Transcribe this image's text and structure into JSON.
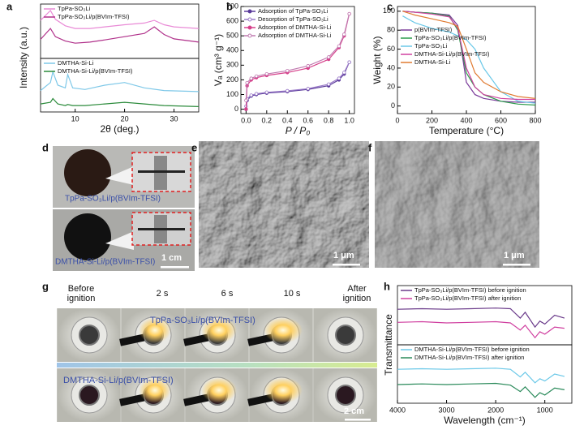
{
  "chart_data": [
    {
      "type": "line",
      "panel": "a",
      "y_label": "Intensity (a.u.)",
      "xlim": [
        3,
        35
      ],
      "ylim": [
        0,
        100
      ],
      "legend": "upper left",
      "x": [
        3,
        5,
        6,
        8,
        10,
        13,
        16,
        20,
        24,
        26,
        28,
        30,
        35
      ],
      "series": [
        {
          "name": "TpPa-SO₃Li",
          "color": "#e98ad6",
          "values": [
            70,
            88,
            72,
            60,
            55,
            55,
            58,
            62,
            65,
            70,
            62,
            58,
            55
          ]
        },
        {
          "name": "TpPa-SO₃Li/p(BVIm-TFSI)",
          "color": "#b0308a",
          "values": [
            35,
            55,
            40,
            32,
            28,
            30,
            34,
            40,
            46,
            58,
            44,
            36,
            30
          ]
        }
      ]
    },
    {
      "type": "line",
      "panel": "a",
      "x_label": "2θ (deg.)",
      "xlim": [
        3,
        35
      ],
      "ylim": [
        0,
        100
      ],
      "xticks": [
        10,
        20,
        30
      ],
      "legend": "upper left",
      "x": [
        3,
        5,
        5.5,
        6.5,
        8,
        8.5,
        9.5,
        12,
        16,
        20,
        24,
        28,
        35
      ],
      "series": [
        {
          "name": "DMTHA-Si-Li",
          "color": "#7ec8e8",
          "values": [
            40,
            55,
            75,
            50,
            45,
            70,
            45,
            42,
            50,
            55,
            45,
            40,
            38
          ]
        },
        {
          "name": "DMTHA-Si-Li/p(BVIm-TFSI)",
          "color": "#2a8a3a",
          "values": [
            15,
            18,
            25,
            15,
            12,
            14,
            12,
            12,
            15,
            18,
            15,
            12,
            10
          ]
        }
      ]
    },
    {
      "type": "line",
      "panel": "b",
      "x_label": "P / P₀",
      "y_label": "Vₐ (cm³ g⁻¹)",
      "xlim": [
        -0.05,
        1.05
      ],
      "ylim": [
        -30,
        700
      ],
      "legend": "upper left",
      "xticks": [
        {
          "value": 0,
          "label": "0.0"
        },
        {
          "value": 0.2,
          "label": "0.2"
        },
        {
          "value": 0.4,
          "label": "0.4"
        },
        {
          "value": 0.6,
          "label": "0.6"
        },
        {
          "value": 0.8,
          "label": "0.8"
        },
        {
          "value": 1,
          "label": "1.0"
        }
      ],
      "yticks": [
        0,
        100,
        200,
        300,
        400,
        500,
        600,
        700
      ],
      "x": [
        0,
        0.01,
        0.05,
        0.1,
        0.2,
        0.4,
        0.6,
        0.8,
        0.9,
        0.95,
        1.0
      ],
      "series": [
        {
          "name": "Adsorption of TpPa-SO₃Li",
          "color": "#5a3a9a",
          "marker": "filled",
          "values": [
            0,
            60,
            90,
            100,
            110,
            120,
            135,
            160,
            200,
            240,
            320
          ]
        },
        {
          "name": "Desorption of TpPa-SO₃Li",
          "color": "#9a7ac8",
          "marker": "hollow",
          "values": [
            20,
            70,
            95,
            105,
            115,
            125,
            140,
            170,
            210,
            250,
            320
          ]
        },
        {
          "name": "Adsorption of DMTHA-Si-Li",
          "color": "#d6408a",
          "marker": "filled",
          "values": [
            0,
            160,
            200,
            215,
            230,
            250,
            280,
            340,
            420,
            500,
            650
          ]
        },
        {
          "name": "Adsorption of DMTHA-Si-Li",
          "color": "#c07ab0",
          "marker": "hollow",
          "values": [
            60,
            180,
            210,
            225,
            240,
            262,
            295,
            355,
            430,
            510,
            650
          ]
        }
      ]
    },
    {
      "type": "line",
      "panel": "c",
      "x_label": "Temperature (°C)",
      "y_label": "Weight (%)",
      "xlim": [
        0,
        800
      ],
      "ylim": [
        -8,
        105
      ],
      "legend": "center left",
      "xticks": [
        0,
        200,
        400,
        600,
        800
      ],
      "yticks": [
        0,
        20,
        40,
        60,
        80,
        100
      ],
      "x": [
        30,
        100,
        200,
        300,
        350,
        400,
        450,
        500,
        600,
        700,
        800
      ],
      "series": [
        {
          "name": "p(BVIm-TFSI)",
          "color": "#7a3a9a",
          "values": [
            100,
            99,
            98,
            96,
            85,
            25,
            12,
            8,
            5,
            4,
            4
          ]
        },
        {
          "name": "TpPa-SO₃Li/p(BVIm-TFSI)",
          "color": "#2a9a4a",
          "values": [
            100,
            99,
            98,
            95,
            80,
            35,
            20,
            12,
            5,
            2,
            1
          ]
        },
        {
          "name": "TpPa-SO₃Li",
          "color": "#6ac8e8",
          "values": [
            95,
            88,
            82,
            78,
            74,
            70,
            60,
            40,
            15,
            5,
            3
          ]
        },
        {
          "name": "DMTHA-Si-Li/p(BVIm-TFSI)",
          "color": "#d040a0",
          "values": [
            100,
            99,
            97,
            94,
            82,
            40,
            20,
            12,
            8,
            7,
            7
          ]
        },
        {
          "name": "DMTHA-Si-Li",
          "color": "#e07a30",
          "values": [
            100,
            96,
            92,
            88,
            84,
            60,
            35,
            25,
            15,
            10,
            8
          ]
        }
      ]
    },
    {
      "type": "line",
      "panel": "h",
      "y_label": "Transmittance",
      "xlim": [
        4000,
        450
      ],
      "ylim": [
        0,
        100
      ],
      "legend": "upper left",
      "x": [
        4000,
        3500,
        3000,
        2500,
        2000,
        1700,
        1500,
        1400,
        1200,
        1100,
        1000,
        800,
        600
      ],
      "series": [
        {
          "name": "TpPa-SO₃Li/p(BVIm-TFSI) before ignition",
          "color": "#6a3a8a",
          "values": [
            60,
            61,
            60,
            61,
            62,
            61,
            45,
            55,
            30,
            40,
            35,
            50,
            45
          ]
        },
        {
          "name": "TpPa-SO₃Li/p(BVIm-TFSI) after ignition",
          "color": "#d040a0",
          "values": [
            38,
            39,
            37,
            38,
            39,
            37,
            25,
            33,
            12,
            22,
            18,
            30,
            28
          ]
        }
      ]
    },
    {
      "type": "line",
      "panel": "h",
      "x_label": "Wavelength (cm⁻¹)",
      "xlim": [
        4000,
        450
      ],
      "ylim": [
        0,
        100
      ],
      "xticks": [
        4000,
        3000,
        2000,
        1000
      ],
      "legend": "upper left",
      "x": [
        4000,
        3500,
        3000,
        2500,
        2000,
        1700,
        1500,
        1400,
        1200,
        1100,
        1000,
        800,
        600
      ],
      "series": [
        {
          "name": "DMTHA-Si-Li/p(BVIm-TFSI) before ignition",
          "color": "#6ac8e8",
          "values": [
            58,
            59,
            58,
            59,
            60,
            58,
            45,
            53,
            35,
            42,
            38,
            50,
            46
          ]
        },
        {
          "name": "DMTHA-Si-Li/p(BVIm-TFSI) after ignition",
          "color": "#2a8a5a",
          "values": [
            32,
            33,
            32,
            33,
            34,
            31,
            20,
            28,
            10,
            18,
            14,
            26,
            23
          ]
        }
      ]
    }
  ],
  "figure": {
    "letters": [
      "a",
      "b",
      "c",
      "d",
      "e",
      "f",
      "g",
      "h"
    ],
    "d": {
      "labels": [
        "TpPa-SO₃Li/p(BVIm-TFSI)",
        "DMTHA-Si-Li/p(BVIm-TFSI)"
      ],
      "scale": "1 cm"
    },
    "e": {
      "scale": "1 μm"
    },
    "f": {
      "scale": "1 μm"
    },
    "g": {
      "headers": [
        "Before ignition",
        "2 s",
        "6 s",
        "10 s",
        "After ignition"
      ],
      "rows": [
        "TpPa-SO₃Li/p(BVIm-TFSI)",
        "DMTHA-Si-Li/p(BVIm-TFSI)"
      ],
      "scale": "2 cm"
    }
  }
}
